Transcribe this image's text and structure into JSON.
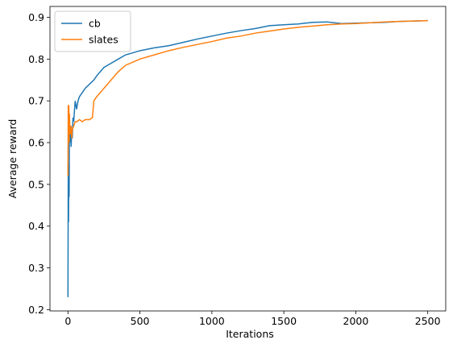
{
  "chart_data": {
    "type": "line",
    "x_label": "Iterations",
    "y_label": "Average reward",
    "xlim": [
      -125,
      2625
    ],
    "ylim": [
      0.197,
      0.926
    ],
    "xticks": [
      0,
      500,
      1000,
      1500,
      2000,
      2500
    ],
    "yticks": [
      0.2,
      0.3,
      0.4,
      0.5,
      0.6,
      0.7,
      0.8,
      0.9
    ],
    "legend": "upper left",
    "series": [
      {
        "name": "cb",
        "color": "#1f77b4",
        "x": [
          0,
          2,
          4,
          6,
          8,
          10,
          14,
          18,
          22,
          26,
          30,
          35,
          40,
          50,
          60,
          70,
          80,
          100,
          120,
          150,
          180,
          200,
          250,
          300,
          350,
          400,
          500,
          600,
          700,
          800,
          900,
          1000,
          1100,
          1200,
          1300,
          1400,
          1500,
          1600,
          1700,
          1800,
          1900,
          2000,
          2100,
          2200,
          2300,
          2400,
          2500
        ],
        "values": [
          0.23,
          0.52,
          0.41,
          0.55,
          0.47,
          0.62,
          0.6,
          0.64,
          0.59,
          0.63,
          0.61,
          0.66,
          0.65,
          0.7,
          0.68,
          0.7,
          0.71,
          0.72,
          0.73,
          0.74,
          0.75,
          0.76,
          0.78,
          0.79,
          0.8,
          0.81,
          0.82,
          0.827,
          0.832,
          0.84,
          0.848,
          0.855,
          0.862,
          0.868,
          0.873,
          0.88,
          0.882,
          0.884,
          0.888,
          0.889,
          0.885,
          0.886,
          0.887,
          0.888,
          0.89,
          0.891,
          0.892
        ]
      },
      {
        "name": "slates",
        "color": "#ff7f0e",
        "x": [
          0,
          2,
          4,
          6,
          8,
          10,
          14,
          18,
          22,
          26,
          30,
          40,
          50,
          60,
          80,
          100,
          120,
          150,
          170,
          180,
          200,
          250,
          300,
          350,
          400,
          500,
          600,
          700,
          800,
          900,
          1000,
          1100,
          1200,
          1300,
          1400,
          1500,
          1600,
          1700,
          1800,
          1900,
          2000,
          2100,
          2200,
          2300,
          2400,
          2500
        ],
        "values": [
          0.52,
          0.69,
          0.63,
          0.69,
          0.6,
          0.67,
          0.63,
          0.62,
          0.64,
          0.61,
          0.63,
          0.64,
          0.65,
          0.65,
          0.655,
          0.65,
          0.655,
          0.655,
          0.66,
          0.7,
          0.71,
          0.73,
          0.75,
          0.77,
          0.785,
          0.8,
          0.81,
          0.82,
          0.828,
          0.835,
          0.842,
          0.85,
          0.855,
          0.862,
          0.867,
          0.872,
          0.876,
          0.879,
          0.882,
          0.884,
          0.885,
          0.887,
          0.889,
          0.89,
          0.891,
          0.892
        ]
      }
    ]
  }
}
